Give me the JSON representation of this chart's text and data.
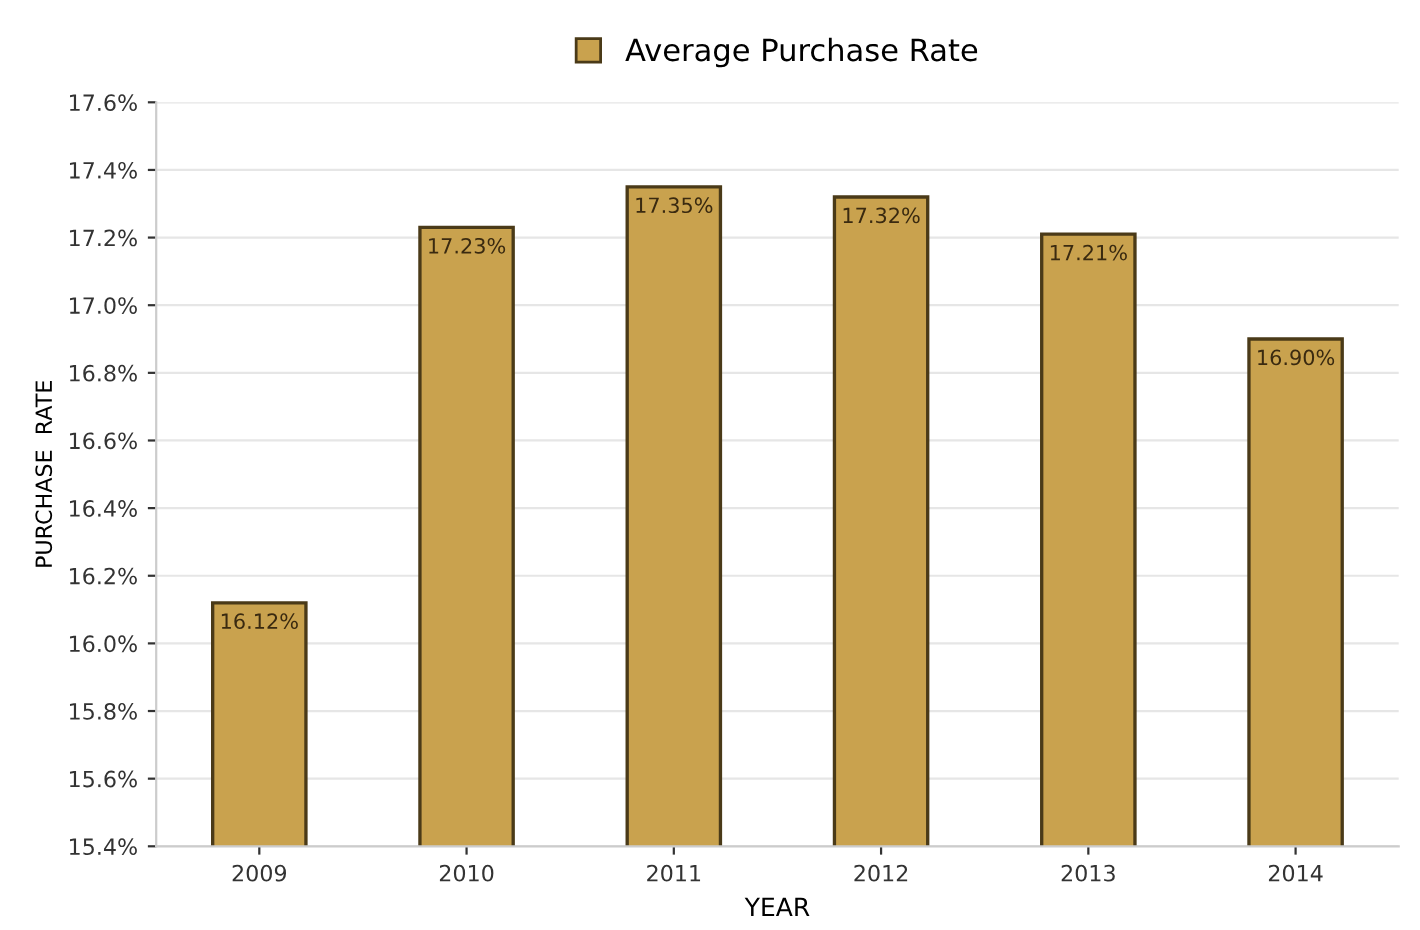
{
  "chart_data": {
    "type": "bar",
    "xlabel": "YEAR",
    "ylabel": "PURCHASE  RATE",
    "categories": [
      "2009",
      "2010",
      "2011",
      "2012",
      "2013",
      "2014"
    ],
    "series": [
      {
        "name": "Average Purchase Rate",
        "color": "#c9a24e",
        "values": [
          16.12,
          17.23,
          17.35,
          17.32,
          17.21,
          16.9
        ],
        "value_labels": [
          "16.12%",
          "17.23%",
          "17.35%",
          "17.32%",
          "17.21%",
          "16.90%"
        ]
      }
    ],
    "ylim": [
      15.4,
      17.6
    ],
    "yticks": [
      {
        "value": 15.4,
        "label": "15.4%"
      },
      {
        "value": 15.6,
        "label": "15.6%"
      },
      {
        "value": 15.8,
        "label": "15.8%"
      },
      {
        "value": 16.0,
        "label": "16.0%"
      },
      {
        "value": 16.2,
        "label": "16.2%"
      },
      {
        "value": 16.4,
        "label": "16.4%"
      },
      {
        "value": 16.6,
        "label": "16.6%"
      },
      {
        "value": 16.8,
        "label": "16.8%"
      },
      {
        "value": 17.0,
        "label": "17.0%"
      },
      {
        "value": 17.2,
        "label": "17.2%"
      },
      {
        "value": 17.4,
        "label": "17.4%"
      },
      {
        "value": 17.6,
        "label": "17.6%"
      }
    ],
    "grid": "y",
    "legend": "top"
  }
}
